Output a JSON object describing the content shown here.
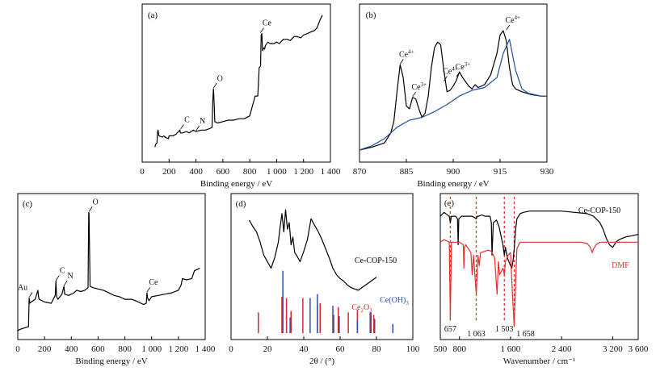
{
  "chart_data": [
    {
      "panel_label": "(a)",
      "type": "line",
      "xlabel": "Binding energy / eV",
      "xlim": [
        0,
        1400
      ],
      "x_ticks": [
        "0",
        "200",
        "400",
        "600",
        "800",
        "1 000",
        "1 200",
        "1 400"
      ],
      "x_tick_values": [
        0,
        200,
        400,
        600,
        800,
        1000,
        1200,
        1400
      ],
      "ylim": [
        0,
        1
      ],
      "series": [
        {
          "color": "#000000",
          "x": [
            95,
            100,
            110,
            115,
            118,
            125,
            150,
            160,
            170,
            195,
            200,
            230,
            250,
            280,
            285,
            300,
            330,
            350,
            380,
            400,
            440,
            470,
            500,
            520,
            525,
            530,
            535,
            540,
            560,
            600,
            640,
            680,
            720,
            760,
            800,
            840,
            860,
            870,
            880,
            885,
            890,
            895,
            900,
            905,
            910,
            915,
            920,
            935,
            950,
            980,
            1000,
            1020,
            1050,
            1080,
            1100,
            1130,
            1150,
            1180,
            1200,
            1230,
            1250,
            1280,
            1300,
            1320,
            1340
          ],
          "y": [
            0.06,
            0.08,
            0.09,
            0.17,
            0.18,
            0.14,
            0.13,
            0.14,
            0.13,
            0.12,
            0.14,
            0.14,
            0.15,
            0.18,
            0.16,
            0.16,
            0.17,
            0.16,
            0.18,
            0.17,
            0.18,
            0.18,
            0.19,
            0.2,
            0.39,
            0.47,
            0.38,
            0.24,
            0.23,
            0.24,
            0.25,
            0.25,
            0.26,
            0.26,
            0.28,
            0.42,
            0.42,
            0.62,
            0.63,
            0.85,
            0.86,
            0.74,
            0.75,
            0.76,
            0.75,
            0.77,
            0.78,
            0.8,
            0.79,
            0.79,
            0.8,
            0.79,
            0.82,
            0.82,
            0.81,
            0.84,
            0.84,
            0.83,
            0.85,
            0.86,
            0.87,
            0.88,
            0.9,
            0.95,
            0.99
          ]
        }
      ],
      "annotations": [
        {
          "text": "Ce",
          "x": 880,
          "y": 0.86
        },
        {
          "text": "O",
          "x": 530,
          "y": 0.47
        },
        {
          "text": "C",
          "x": 285,
          "y": 0.18
        },
        {
          "text": "N",
          "x": 400,
          "y": 0.17
        }
      ]
    },
    {
      "panel_label": "(b)",
      "type": "line",
      "xlabel": "Binding energy / eV",
      "xlim": [
        870,
        930
      ],
      "x_ticks": [
        "870",
        "885",
        "900",
        "915",
        "930"
      ],
      "x_tick_values": [
        870,
        885,
        900,
        915,
        930
      ],
      "ylim": [
        0,
        1
      ],
      "series": [
        {
          "color": "#000000",
          "x": [
            870,
            874,
            878,
            880,
            881,
            882,
            883,
            884,
            885,
            886,
            887,
            888,
            889,
            890,
            891,
            892,
            893,
            894,
            895,
            896,
            897,
            898,
            899,
            900,
            901,
            902,
            903,
            904,
            905,
            906,
            907,
            908,
            910,
            912,
            914,
            915,
            916,
            917,
            918,
            919,
            920,
            922,
            925,
            928,
            930
          ],
          "y": [
            0.04,
            0.06,
            0.09,
            0.16,
            0.24,
            0.45,
            0.64,
            0.55,
            0.35,
            0.33,
            0.41,
            0.4,
            0.33,
            0.27,
            0.3,
            0.42,
            0.62,
            0.76,
            0.8,
            0.78,
            0.6,
            0.45,
            0.46,
            0.49,
            0.53,
            0.59,
            0.55,
            0.52,
            0.49,
            0.47,
            0.5,
            0.48,
            0.5,
            0.57,
            0.72,
            0.85,
            0.88,
            0.81,
            0.62,
            0.5,
            0.47,
            0.45,
            0.43,
            0.42,
            0.42
          ]
        },
        {
          "color": "#1f4e9c",
          "x": [
            870,
            874,
            878,
            882,
            886,
            890,
            894,
            898,
            902,
            906,
            910,
            914,
            916,
            918,
            920,
            922,
            924,
            928,
            930
          ],
          "y": [
            0.04,
            0.07,
            0.12,
            0.2,
            0.25,
            0.27,
            0.31,
            0.36,
            0.42,
            0.46,
            0.48,
            0.55,
            0.72,
            0.82,
            0.6,
            0.47,
            0.44,
            0.42,
            0.42
          ]
        }
      ],
      "annotations": [
        {
          "text": "Ce",
          "sup": "4+",
          "x": 883,
          "y": 0.64
        },
        {
          "text": "Ce",
          "sup": "3+",
          "x": 887,
          "y": 0.41
        },
        {
          "text": "Ce",
          "sup": "4+",
          "x": 897,
          "y": 0.52
        },
        {
          "text": "Ce",
          "sup": "3+",
          "x": 901,
          "y": 0.55
        },
        {
          "text": "Ce",
          "sup": "4+",
          "x": 917,
          "y": 0.88
        }
      ]
    },
    {
      "panel_label": "(c)",
      "type": "line",
      "xlabel": "Binding energy / eV",
      "xlim": [
        0,
        1400
      ],
      "x_ticks": [
        "0",
        "200",
        "400",
        "600",
        "800",
        "1 000",
        "1 200",
        "1 400"
      ],
      "x_tick_values": [
        0,
        200,
        400,
        600,
        800,
        1000,
        1200,
        1400
      ],
      "ylim": [
        0,
        1
      ],
      "series": [
        {
          "color": "#000000",
          "x": [
            0,
            20,
            50,
            80,
            85,
            90,
            100,
            130,
            150,
            155,
            160,
            200,
            250,
            280,
            285,
            290,
            300,
            330,
            345,
            350,
            380,
            400,
            420,
            440,
            470,
            500,
            525,
            530,
            532,
            540,
            560,
            600,
            640,
            680,
            720,
            760,
            800,
            850,
            880,
            900,
            920,
            940,
            960,
            965,
            970,
            980,
            1000,
            1050,
            1100,
            1150,
            1200,
            1220,
            1230,
            1260,
            1300,
            1320,
            1340,
            1360
          ],
          "y": [
            0.02,
            0.03,
            0.04,
            0.05,
            0.27,
            0.23,
            0.24,
            0.26,
            0.33,
            0.28,
            0.26,
            0.24,
            0.23,
            0.29,
            0.4,
            0.28,
            0.26,
            0.3,
            0.36,
            0.3,
            0.29,
            0.3,
            0.31,
            0.33,
            0.32,
            0.33,
            0.35,
            0.93,
            0.92,
            0.36,
            0.35,
            0.34,
            0.33,
            0.31,
            0.29,
            0.28,
            0.26,
            0.26,
            0.25,
            0.24,
            0.23,
            0.22,
            0.23,
            0.31,
            0.27,
            0.25,
            0.28,
            0.29,
            0.3,
            0.31,
            0.33,
            0.37,
            0.42,
            0.41,
            0.42,
            0.48,
            0.49,
            0.5
          ]
        }
      ],
      "annotations": [
        {
          "text": "O",
          "x": 532,
          "y": 0.93
        },
        {
          "text": "C",
          "x": 285,
          "y": 0.4
        },
        {
          "text": "N",
          "x": 345,
          "y": 0.36
        },
        {
          "text": "Au",
          "x": 85,
          "y": 0.27
        },
        {
          "text": "Ce",
          "x": 965,
          "y": 0.31
        }
      ]
    },
    {
      "panel_label": "(d)",
      "type": "line",
      "xlabel": "2θ / (°)",
      "xlim": [
        0,
        100
      ],
      "x_ticks": [
        "0",
        "20",
        "40",
        "60",
        "80",
        "100"
      ],
      "x_tick_values": [
        0,
        20,
        40,
        60,
        80,
        100
      ],
      "ylim": [
        0,
        1
      ],
      "series": [
        {
          "name": "Ce-COP-150",
          "color": "#000000",
          "x": [
            10,
            12,
            14,
            16,
            18,
            20,
            22,
            24,
            26,
            27,
            28,
            29,
            30,
            31,
            32,
            33,
            34,
            35,
            36,
            38,
            40,
            42,
            44,
            46,
            48,
            50,
            52,
            54,
            56,
            58,
            60,
            62,
            64,
            66,
            68,
            70,
            72,
            74,
            76,
            78,
            80
          ],
          "y": [
            0.87,
            0.82,
            0.78,
            0.7,
            0.6,
            0.55,
            0.5,
            0.58,
            0.7,
            0.82,
            0.92,
            0.78,
            0.95,
            0.8,
            0.85,
            0.68,
            0.74,
            0.62,
            0.6,
            0.55,
            0.63,
            0.72,
            0.88,
            0.83,
            0.78,
            0.72,
            0.65,
            0.58,
            0.5,
            0.45,
            0.42,
            0.4,
            0.37,
            0.35,
            0.34,
            0.33,
            0.35,
            0.37,
            0.39,
            0.41,
            0.43
          ]
        }
      ],
      "sticks": [
        {
          "name": "Ce₂O₃",
          "color": "#d9262b",
          "x": [
            15,
            28,
            30.5,
            33,
            39.5,
            47.5,
            49,
            56.5,
            59,
            64.5,
            69.5,
            76.5,
            78.5
          ],
          "h": [
            0.16,
            0.28,
            0.27,
            0.17,
            0.27,
            0.22,
            0.23,
            0.14,
            0.2,
            0.16,
            0.18,
            0.16,
            0.14
          ]
        },
        {
          "name": "Ce(OH)₃",
          "color": "#2c50b4",
          "x": [
            28.5,
            32.5,
            43.5,
            47.5,
            56,
            59.5,
            69.5,
            77,
            79,
            89
          ],
          "h": [
            0.48,
            0.12,
            0.27,
            0.3,
            0.21,
            0.13,
            0.1,
            0.16,
            0.11,
            0.07
          ]
        }
      ],
      "legend_labels": [
        {
          "text": "Ce-COP-150",
          "color": "#000000"
        },
        {
          "text": "Ce",
          "sub": "2",
          "text2": "O",
          "sub2": "3",
          "color": "#d9262b"
        },
        {
          "text": "Ce(OH)",
          "sub": "3",
          "color": "#2c50b4"
        }
      ]
    },
    {
      "panel_label": "(e)",
      "type": "line",
      "xlabel": "Wavenumber / cm⁻¹",
      "xlim": [
        500,
        3600
      ],
      "x_ticks": [
        "500",
        "800",
        "1 600",
        "2 400",
        "3 200",
        "3 600"
      ],
      "x_tick_values": [
        500,
        800,
        1600,
        2400,
        3200,
        3600
      ],
      "ylim": [
        0,
        1
      ],
      "series": [
        {
          "name": "Ce-COP-150",
          "color": "#000000",
          "x": [
            500,
            560,
            640,
            657,
            675,
            740,
            770,
            780,
            790,
            830,
            900,
            1000,
            1063,
            1080,
            1100,
            1150,
            1200,
            1280,
            1300,
            1310,
            1330,
            1380,
            1420,
            1450,
            1480,
            1503,
            1520,
            1550,
            1600,
            1620,
            1640,
            1658,
            1680,
            1700,
            1750,
            1800,
            1900,
            2000,
            2200,
            2400,
            2600,
            2800,
            2900,
            3000,
            3050,
            3100,
            3150,
            3200,
            3250,
            3300,
            3400,
            3500,
            3600
          ],
          "y": [
            0.9,
            0.93,
            0.9,
            0.85,
            0.9,
            0.9,
            0.88,
            0.68,
            0.88,
            0.9,
            0.9,
            0.9,
            0.88,
            0.9,
            0.9,
            0.91,
            0.9,
            0.9,
            0.85,
            0.6,
            0.85,
            0.87,
            0.82,
            0.75,
            0.68,
            0.6,
            0.66,
            0.58,
            0.52,
            0.5,
            0.56,
            0.65,
            0.8,
            0.88,
            0.92,
            0.93,
            0.94,
            0.94,
            0.94,
            0.94,
            0.93,
            0.92,
            0.9,
            0.85,
            0.8,
            0.73,
            0.68,
            0.66,
            0.7,
            0.72,
            0.74,
            0.75,
            0.76
          ]
        },
        {
          "name": "DMF",
          "color": "#e3302f",
          "x": [
            500,
            560,
            640,
            657,
            675,
            740,
            800,
            860,
            870,
            880,
            900,
            980,
            1000,
            1020,
            1063,
            1090,
            1110,
            1130,
            1200,
            1250,
            1300,
            1350,
            1390,
            1410,
            1430,
            1480,
            1503,
            1520,
            1560,
            1600,
            1630,
            1658,
            1680,
            1700,
            1750,
            1800,
            2000,
            2400,
            2700,
            2800,
            2850,
            2880,
            2900,
            2940,
            3000,
            3200,
            3400,
            3600
          ],
          "y": [
            0.7,
            0.72,
            0.7,
            0.1,
            0.7,
            0.7,
            0.7,
            0.68,
            0.5,
            0.66,
            0.68,
            0.62,
            0.45,
            0.6,
            0.3,
            0.6,
            0.52,
            0.62,
            0.63,
            0.64,
            0.63,
            0.58,
            0.3,
            0.55,
            0.45,
            0.5,
            0.45,
            0.55,
            0.6,
            0.62,
            0.3,
            0.05,
            0.4,
            0.65,
            0.7,
            0.7,
            0.7,
            0.7,
            0.7,
            0.69,
            0.66,
            0.62,
            0.65,
            0.68,
            0.7,
            0.7,
            0.7,
            0.7
          ]
        }
      ],
      "marker_lines": [
        657,
        1063,
        1503,
        1658
      ],
      "peak_labels": [
        {
          "text": "657",
          "x": 657
        },
        {
          "text": "1 063",
          "x": 1063
        },
        {
          "text": "1 503",
          "x": 1503
        },
        {
          "text": "1 658",
          "x": 1658
        }
      ]
    }
  ]
}
